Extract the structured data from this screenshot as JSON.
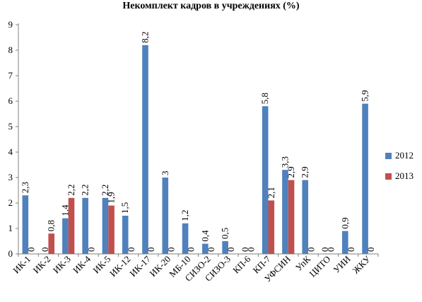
{
  "chart_data": {
    "type": "bar",
    "title": "Некомплект кадров в учреждениях (%)",
    "categories": [
      "ИК-1",
      "ИК-2",
      "ИК-3",
      "ИК-4",
      "ИК-5",
      "ИК-12",
      "ИК-17",
      "ИК-20",
      "МБ-10",
      "СИЗО-2",
      "СИЗО-3",
      "КП-6",
      "КП-7",
      "УФСИН",
      "УпК",
      "ЦИТО",
      "УИИ",
      "ЖКУ"
    ],
    "series": [
      {
        "name": "2012",
        "color": "#4F81BD",
        "values": [
          2.3,
          0,
          1.4,
          2.2,
          2.2,
          1.5,
          8.2,
          3,
          1.2,
          0.4,
          0.5,
          0,
          5.8,
          3.3,
          2.9,
          0,
          0.9,
          5.9
        ]
      },
      {
        "name": "2013",
        "color": "#C0504D",
        "values": [
          0,
          0.8,
          2.2,
          0,
          1.9,
          0,
          0,
          0,
          0,
          0,
          0,
          0,
          2.1,
          2.9,
          0,
          0,
          0,
          0
        ]
      }
    ],
    "value_labels": {
      "2012": [
        "2,3",
        "0",
        "1,4",
        "2,2",
        "2,2",
        "1,5",
        "8,2",
        "3",
        "1,2",
        "0,4",
        "0,5",
        "0",
        "5,8",
        "3,3",
        "2,9",
        "0",
        "0,9",
        "5,9"
      ],
      "2013": [
        "0",
        "0,8",
        "2,2",
        "0",
        "1,9",
        "0",
        "0",
        "0",
        "0",
        "0",
        "0",
        "0",
        "2,1",
        "2,9",
        "0",
        "0",
        "0",
        "0"
      ]
    },
    "ylim": [
      0,
      9
    ],
    "yticks": [
      0,
      1,
      2,
      3,
      4,
      5,
      6,
      7,
      8,
      9
    ],
    "grid": false,
    "legend_position": "right"
  }
}
